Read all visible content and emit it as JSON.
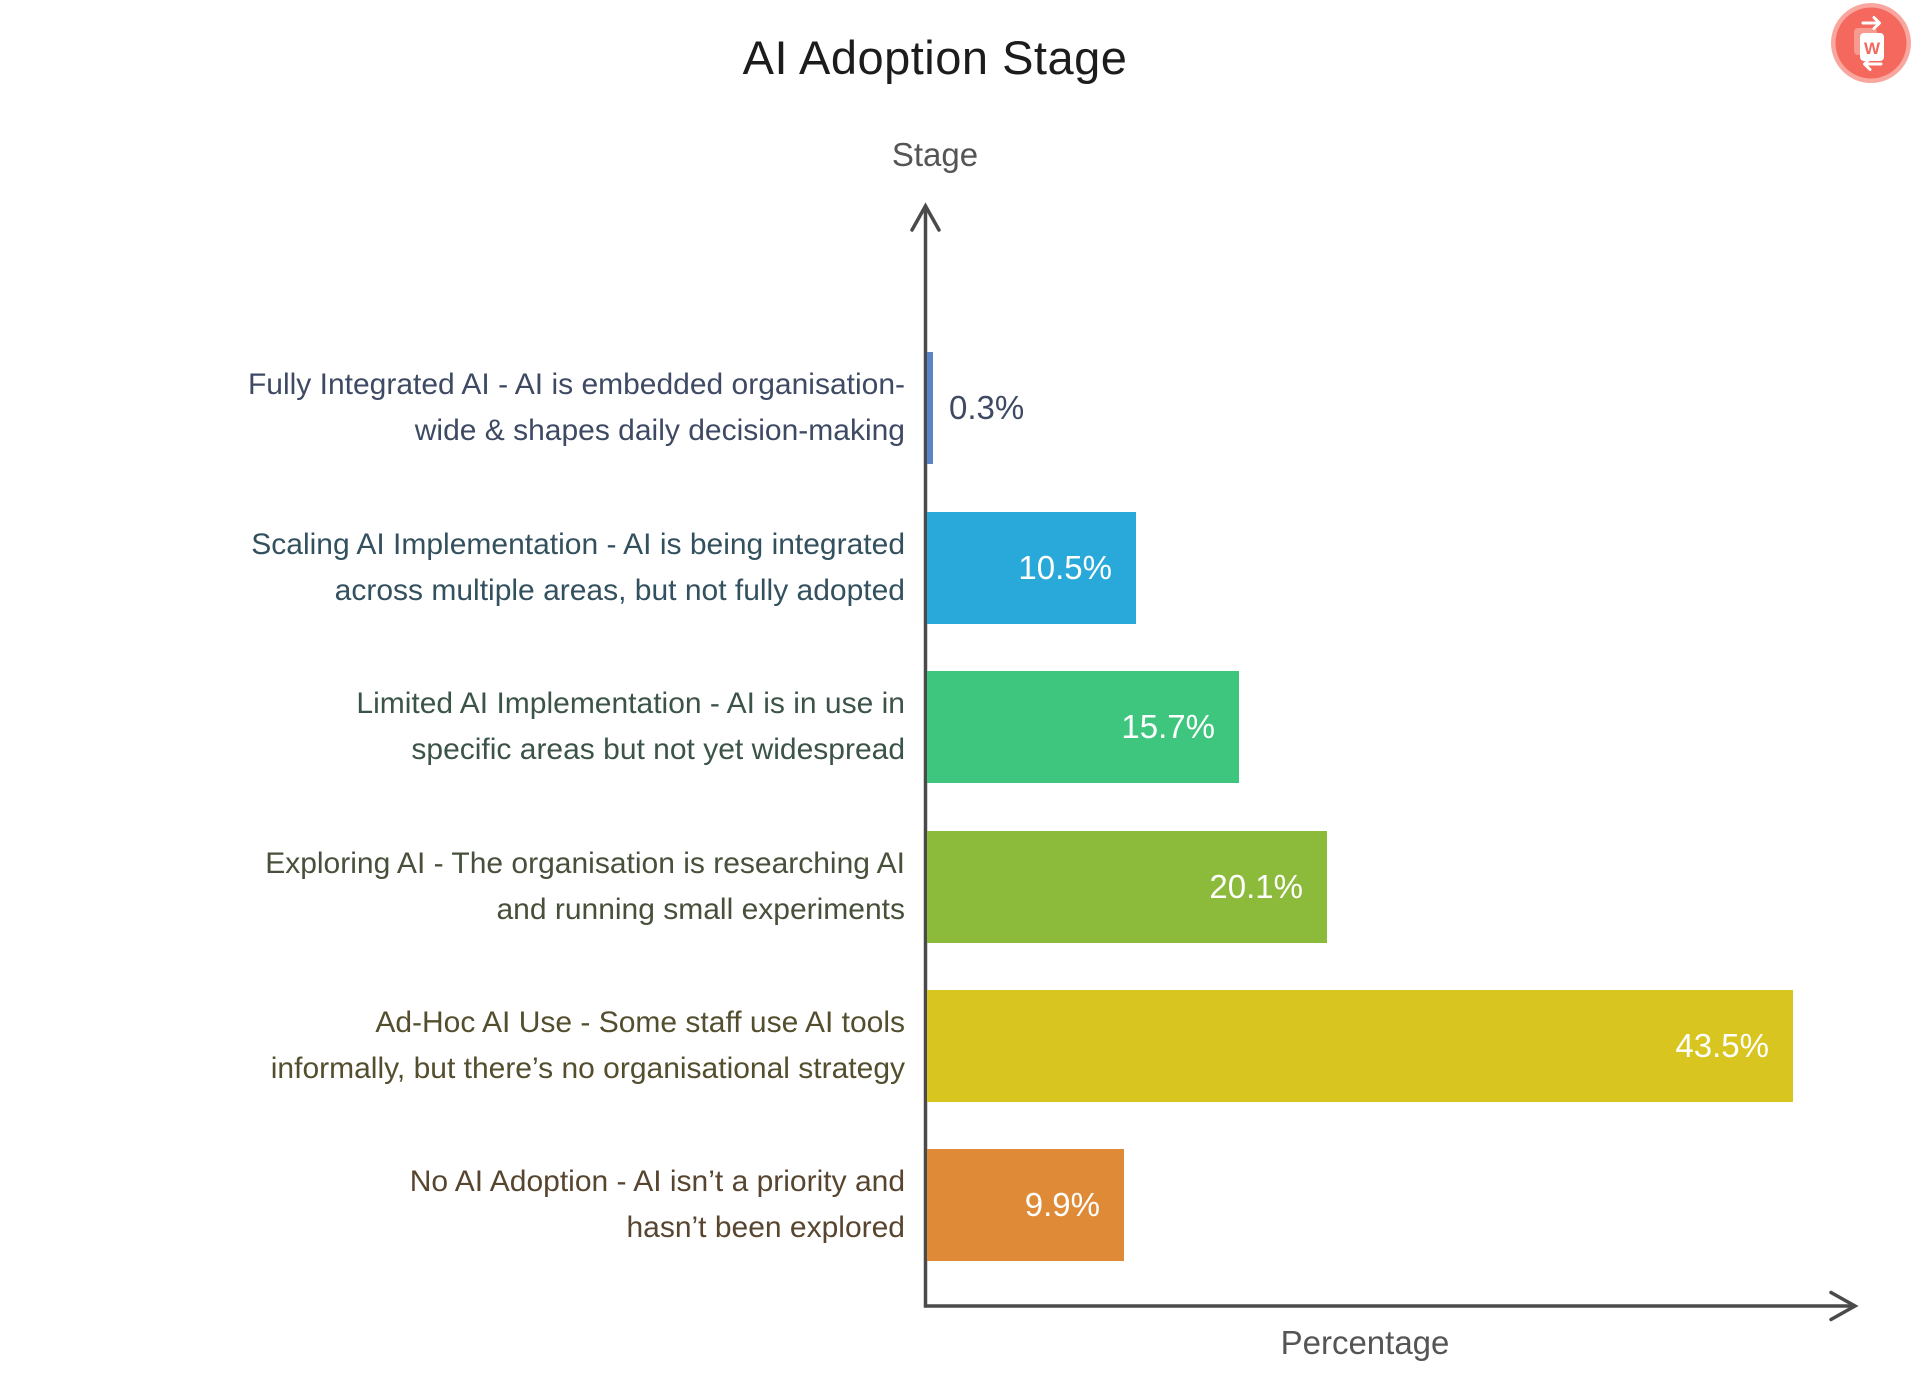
{
  "chart_data": {
    "type": "bar",
    "orientation": "horizontal",
    "title": "AI Adoption Stage",
    "ylabel": "Stage",
    "xlabel": "Percentage",
    "xlim": [
      0,
      47
    ],
    "grid": false,
    "legend": "none",
    "axis_color": "#4a4a4a",
    "categories": [
      {
        "label_lines": [
          "Fully Integrated AI - AI is embedded organisation-",
          "wide & shapes daily decision-making"
        ],
        "value": 0.3,
        "value_label": "0.3%",
        "color": "#5b84c8",
        "label_color": "#3e4a63"
      },
      {
        "label_lines": [
          "Scaling AI Implementation - AI is being integrated",
          "across multiple areas, but not fully adopted"
        ],
        "value": 10.5,
        "value_label": "10.5%",
        "color": "#29a9d9",
        "label_color": "#33505f"
      },
      {
        "label_lines": [
          "Limited AI Implementation - AI is in use in",
          "specific areas but not yet widespread"
        ],
        "value": 15.7,
        "value_label": "15.7%",
        "color": "#3fc67e",
        "label_color": "#3c5448"
      },
      {
        "label_lines": [
          "Exploring AI - The organisation is researching AI",
          "and running small experiments"
        ],
        "value": 20.1,
        "value_label": "20.1%",
        "color": "#8cba3a",
        "label_color": "#47503a"
      },
      {
        "label_lines": [
          "Ad-Hoc AI Use - Some staff use AI tools",
          "informally, but there’s no organisational strategy"
        ],
        "value": 43.5,
        "value_label": "43.5%",
        "color": "#d9c51f",
        "label_color": "#534e2e"
      },
      {
        "label_lines": [
          "No AI Adoption - AI isn’t a priority and",
          "hasn’t been explored"
        ],
        "value": 9.9,
        "value_label": "9.9%",
        "color": "#de8a36",
        "label_color": "#58452f"
      }
    ]
  },
  "watermark": {
    "icon": "w-document-convert-icon",
    "letter": "W",
    "color": "#f4685e"
  }
}
